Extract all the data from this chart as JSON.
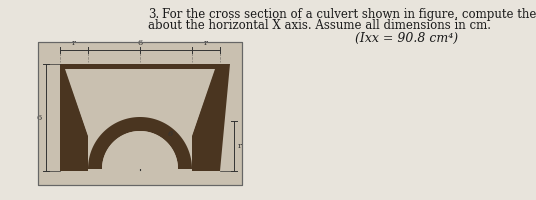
{
  "problem_number": "3.",
  "problem_text_line1": " For the cross section of a culvert shown in figure, compute the moment of inertia",
  "problem_text_line2": "about the horizontal X axis. Assume all dimensions in cm.",
  "answer_text": "(Ixx = 90.8 cm⁴)",
  "background_color": "#f0ece4",
  "page_color": "#e8e4dc",
  "text_color": "#1a1a1a",
  "figure_bg": "#c9c0b0",
  "culvert_color": "#4a3520",
  "title_fontsize": 8.5,
  "answer_fontsize": 9
}
